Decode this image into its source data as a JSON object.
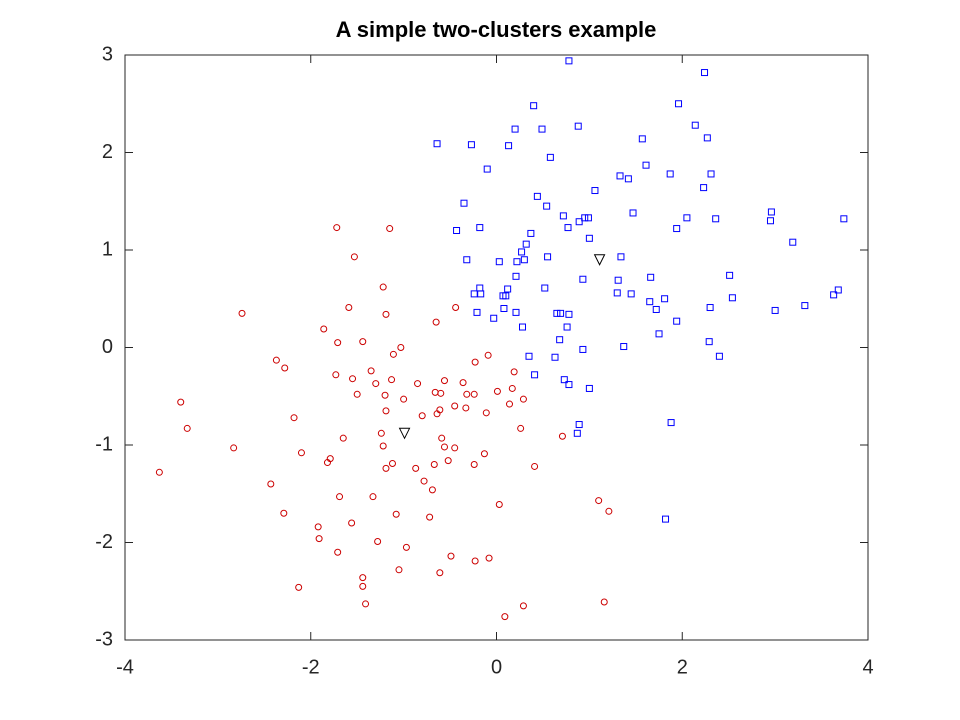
{
  "chart_data": {
    "type": "scatter",
    "title": "A simple two-clusters example",
    "xlim": [
      -4,
      4
    ],
    "xticks": [
      -4,
      -2,
      0,
      2,
      4
    ],
    "ylim": [
      -3,
      3
    ],
    "yticks": [
      -3,
      -2,
      -1,
      0,
      1,
      2,
      3
    ],
    "grid": false,
    "series": [
      {
        "color": "#0000ff",
        "marker": "square",
        "x": [
          0.78,
          2.24,
          1.96,
          0.4,
          2.14,
          0.2,
          0.49,
          0.88,
          -0.64,
          -0.27,
          0.13,
          1.57,
          2.27,
          0.58,
          -0.1,
          1.61,
          1.87,
          2.31,
          1.33,
          1.42,
          1.06,
          2.23,
          0.44,
          -0.35,
          0.54,
          1.47,
          2.96,
          0.72,
          0.95,
          0.99,
          0.89,
          2.95,
          2.05,
          2.36,
          3.74,
          0.77,
          1.94,
          -0.43,
          -0.18,
          0.37,
          1.0,
          0.32,
          3.19,
          0.27,
          0.55,
          1.34,
          -0.32,
          0.03,
          0.3,
          0.22,
          0.21,
          2.51,
          1.66,
          0.93,
          1.31,
          3.68,
          0.12,
          -0.18,
          0.52,
          -0.24,
          -0.17,
          0.07,
          0.1,
          1.3,
          1.45,
          2.54,
          3.63,
          1.81,
          1.65,
          3.32,
          0.08,
          2.3,
          -0.21,
          0.65,
          0.69,
          1.72,
          3.0,
          0.78,
          0.21,
          -0.03,
          1.94,
          0.28,
          0.76,
          1.75,
          0.68,
          2.29,
          1.37,
          0.93,
          2.4,
          0.35,
          0.63,
          0.41,
          0.73,
          0.78,
          1.0,
          1.88,
          0.89,
          0.87,
          1.82
        ],
        "values": [
          2.94,
          2.82,
          2.5,
          2.48,
          2.28,
          2.24,
          2.24,
          2.27,
          2.09,
          2.08,
          2.07,
          2.14,
          2.15,
          1.95,
          1.83,
          1.87,
          1.78,
          1.78,
          1.76,
          1.73,
          1.61,
          1.64,
          1.55,
          1.48,
          1.45,
          1.38,
          1.39,
          1.35,
          1.33,
          1.33,
          1.29,
          1.3,
          1.33,
          1.32,
          1.32,
          1.23,
          1.22,
          1.2,
          1.23,
          1.17,
          1.12,
          1.06,
          1.08,
          0.98,
          0.93,
          0.93,
          0.9,
          0.88,
          0.9,
          0.88,
          0.73,
          0.74,
          0.72,
          0.7,
          0.69,
          0.59,
          0.6,
          0.61,
          0.61,
          0.55,
          0.55,
          0.53,
          0.53,
          0.56,
          0.55,
          0.51,
          0.54,
          0.5,
          0.47,
          0.43,
          0.4,
          0.41,
          0.36,
          0.35,
          0.35,
          0.39,
          0.38,
          0.34,
          0.36,
          0.3,
          0.27,
          0.21,
          0.21,
          0.14,
          0.08,
          0.06,
          0.01,
          -0.02,
          -0.09,
          -0.09,
          -0.1,
          -0.28,
          -0.33,
          -0.38,
          -0.42,
          -0.77,
          -0.79,
          -0.88,
          -1.76
        ]
      },
      {
        "color": "#cc0000",
        "marker": "circle",
        "x": [
          -1.72,
          -1.15,
          -1.53,
          -1.22,
          -2.74,
          -1.19,
          -1.59,
          -0.44,
          -0.65,
          -1.86,
          -1.71,
          -1.44,
          -1.03,
          -1.11,
          -2.37,
          -2.28,
          -0.09,
          -0.23,
          -1.73,
          -1.35,
          -1.55,
          -1.13,
          -1.3,
          -0.56,
          -0.36,
          -0.85,
          0.19,
          -1.5,
          -1.2,
          -0.66,
          -0.6,
          -0.32,
          -0.24,
          0.01,
          0.17,
          -3.4,
          -1.0,
          0.29,
          0.14,
          -0.45,
          -0.33,
          -0.61,
          -0.64,
          -1.19,
          -0.11,
          -2.18,
          -0.8,
          -3.33,
          0.26,
          -1.65,
          -1.24,
          -0.59,
          0.71,
          -2.83,
          -1.22,
          -0.56,
          -0.45,
          -2.1,
          -0.13,
          -1.79,
          -1.82,
          -1.12,
          -0.52,
          -0.67,
          -0.24,
          -1.19,
          -0.87,
          0.41,
          -3.63,
          -0.78,
          -2.43,
          -0.69,
          -1.69,
          -1.33,
          1.1,
          0.03,
          -1.08,
          1.21,
          -2.29,
          -0.72,
          -1.56,
          -1.92,
          -1.91,
          -1.28,
          -0.97,
          -1.71,
          -0.49,
          -0.08,
          -0.23,
          -1.05,
          -0.61,
          -1.44,
          -2.13,
          -1.44,
          0.29,
          1.16,
          -1.41,
          0.09
        ],
        "values": [
          1.23,
          1.22,
          0.93,
          0.62,
          0.35,
          0.34,
          0.41,
          0.41,
          0.26,
          0.19,
          0.05,
          0.06,
          0.0,
          -0.07,
          -0.13,
          -0.21,
          -0.08,
          -0.15,
          -0.28,
          -0.24,
          -0.32,
          -0.33,
          -0.37,
          -0.34,
          -0.36,
          -0.37,
          -0.25,
          -0.48,
          -0.49,
          -0.46,
          -0.47,
          -0.48,
          -0.48,
          -0.45,
          -0.42,
          -0.56,
          -0.53,
          -0.53,
          -0.58,
          -0.6,
          -0.62,
          -0.64,
          -0.68,
          -0.65,
          -0.67,
          -0.72,
          -0.7,
          -0.83,
          -0.83,
          -0.93,
          -0.88,
          -0.93,
          -0.91,
          -1.03,
          -1.01,
          -1.02,
          -1.03,
          -1.08,
          -1.09,
          -1.14,
          -1.18,
          -1.19,
          -1.16,
          -1.2,
          -1.2,
          -1.24,
          -1.24,
          -1.22,
          -1.28,
          -1.37,
          -1.4,
          -1.46,
          -1.53,
          -1.53,
          -1.57,
          -1.61,
          -1.71,
          -1.68,
          -1.7,
          -1.74,
          -1.8,
          -1.84,
          -1.96,
          -1.99,
          -2.05,
          -2.1,
          -2.14,
          -2.16,
          -2.19,
          -2.28,
          -2.31,
          -2.36,
          -2.46,
          -2.45,
          -2.65,
          -2.61,
          -2.63,
          -2.76
        ]
      },
      {
        "color": "#000000",
        "marker": "triangle-down",
        "x": [
          -0.99,
          1.11
        ],
        "values": [
          -0.88,
          0.9
        ]
      }
    ]
  }
}
